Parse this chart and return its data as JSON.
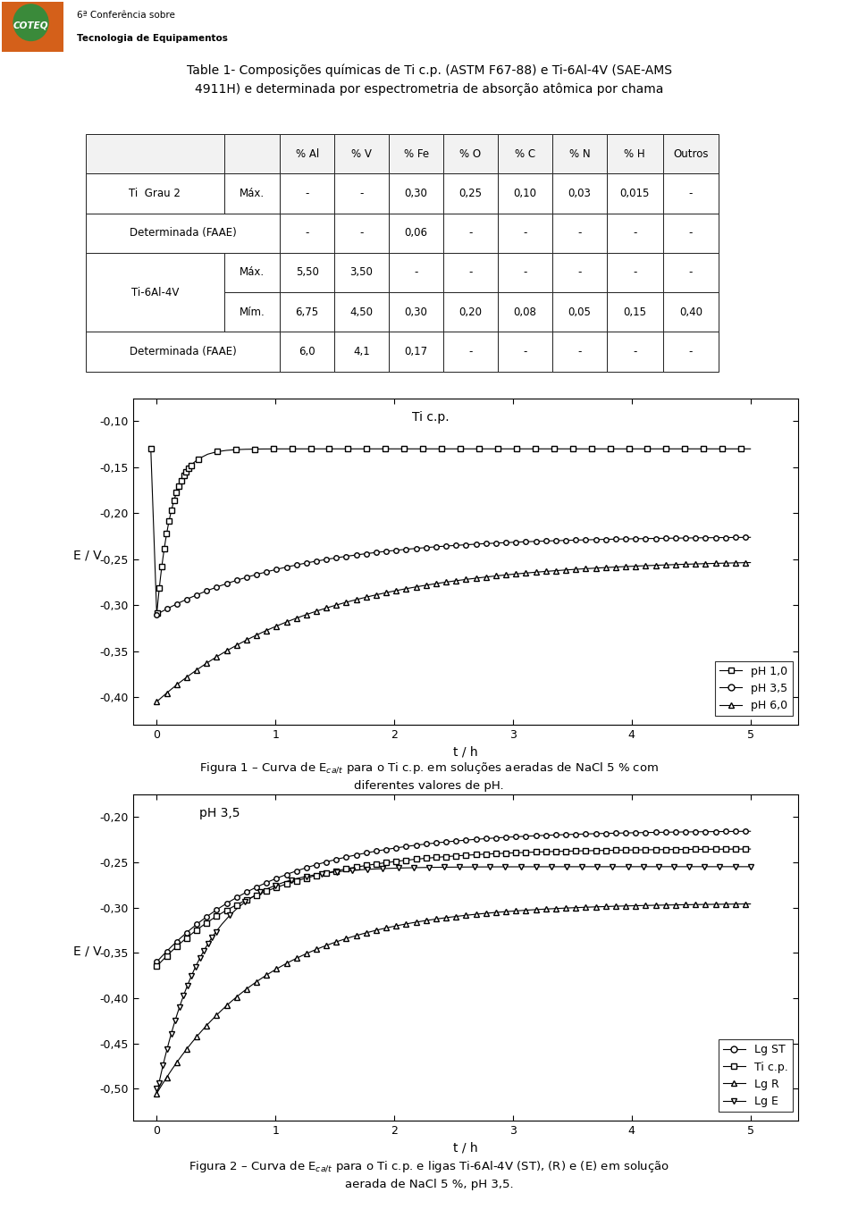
{
  "title_table": "Table 1- Composições químicas de Ti c.p. (ASTM F67-88) e Ti-6Al-4V (SAE-AMS\n4911H) e determinada por espectrometria de absorção atômica por chama",
  "fig1_annotation": "Ti c.p.",
  "fig1_xlabel": "t / h",
  "fig1_ylabel": "E / V",
  "fig1_ylim": [
    -0.43,
    -0.075
  ],
  "fig1_xlim": [
    -0.2,
    5.4
  ],
  "fig1_yticks": [
    -0.4,
    -0.35,
    -0.3,
    -0.25,
    -0.2,
    -0.15,
    -0.1
  ],
  "fig1_xticks": [
    0,
    1,
    2,
    3,
    4,
    5
  ],
  "fig1_legend": [
    "pH 1,0",
    "pH 3,5",
    "pH 6,0"
  ],
  "fig1_caption": "Figura 1 – Curva de E$_{ca/t}$ para o Ti c.p. em soluções aeradas de NaCl 5 % com\ndiferentes valores de pH.",
  "fig2_annotation": "pH 3,5",
  "fig2_xlabel": "t / h",
  "fig2_ylabel": "E / V",
  "fig2_ylim": [
    -0.535,
    -0.175
  ],
  "fig2_xlim": [
    -0.2,
    5.4
  ],
  "fig2_yticks": [
    -0.5,
    -0.45,
    -0.4,
    -0.35,
    -0.3,
    -0.25,
    -0.2
  ],
  "fig2_xticks": [
    0,
    1,
    2,
    3,
    4,
    5
  ],
  "fig2_legend": [
    "Lg ST",
    "Ti c.p.",
    "Lg R",
    "Lg E"
  ],
  "fig2_caption": "Figura 2 – Curva de E$_{ca/t}$ para o Ti c.p. e ligas Ti-6Al-4V (ST), (R) e (E) em solução\naerada de NaCl 5 %, pH 3,5.",
  "bg_color": "#ffffff",
  "logo_text_1": "6ª Conferência sobre",
  "logo_text_2": "Tecnologia de Equipamentos"
}
